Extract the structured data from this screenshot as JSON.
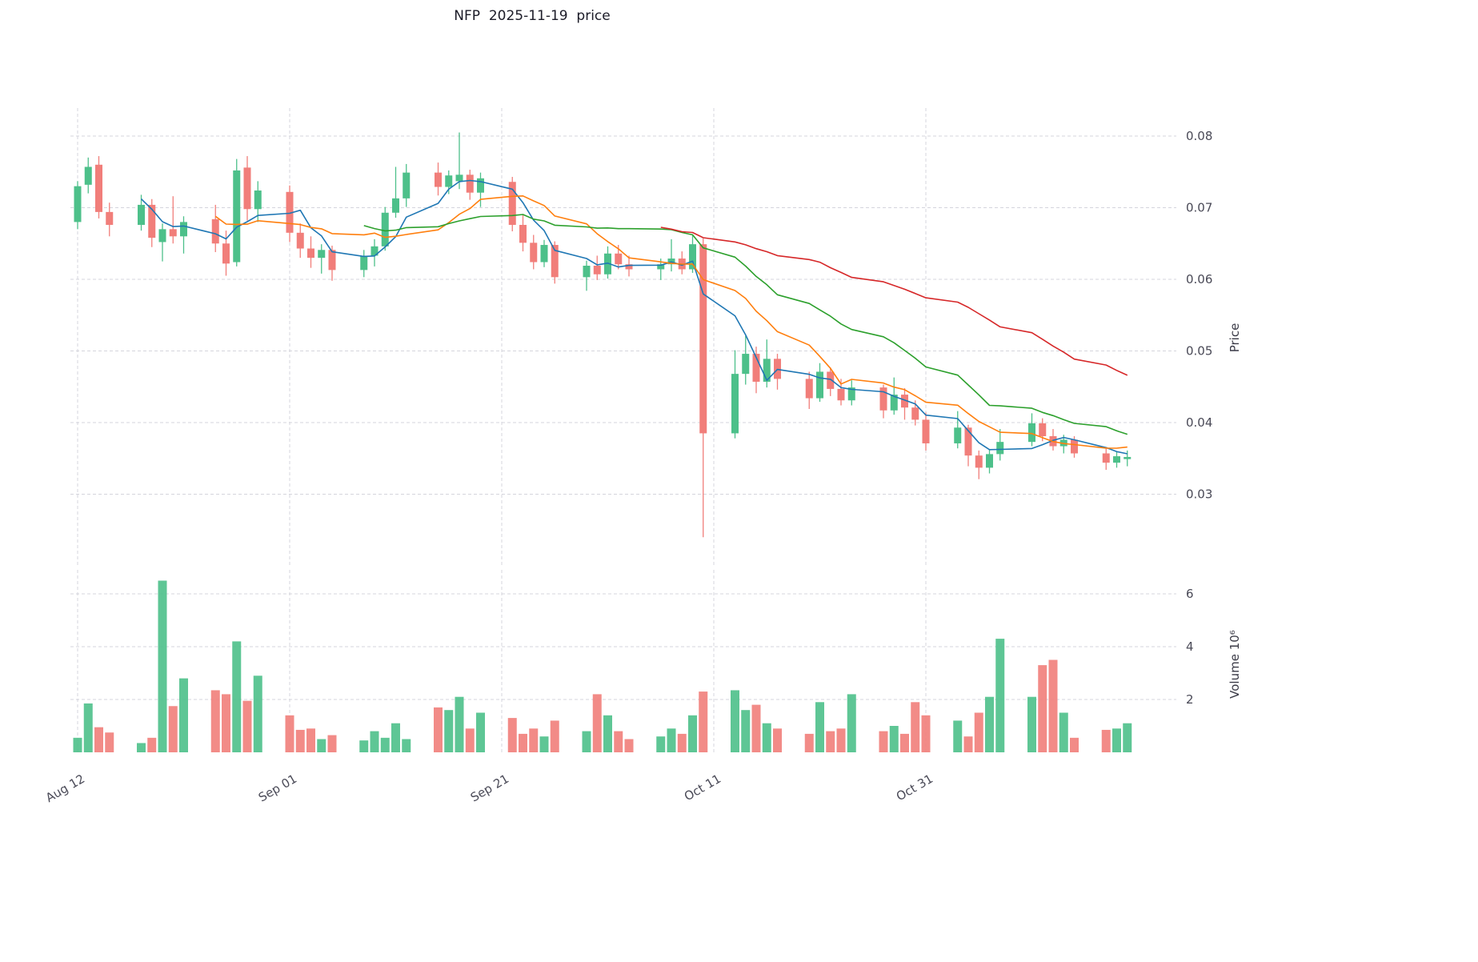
{
  "chart_data": {
    "type": "candlestick",
    "title": "NFP  2025-11-19  price",
    "price_axis": {
      "label": "Price",
      "side": "right",
      "ticks": [
        0.03,
        0.04,
        0.05,
        0.06,
        0.07,
        0.08
      ],
      "ylim": [
        0.021,
        0.084
      ]
    },
    "volume_axis": {
      "label": "Volume  10⁶",
      "side": "right",
      "ticks": [
        2,
        4,
        6
      ],
      "unit": 1000000,
      "ylim": [
        0,
        7
      ]
    },
    "x_axis": {
      "ticks": [
        {
          "date": "2025-08-12",
          "label": "Aug 12"
        },
        {
          "date": "2025-09-01",
          "label": "Sep 01"
        },
        {
          "date": "2025-09-21",
          "label": "Sep 21"
        },
        {
          "date": "2025-10-11",
          "label": "Oct 11"
        },
        {
          "date": "2025-10-31",
          "label": "Oct 31"
        }
      ]
    },
    "grid": true,
    "legend": "none",
    "moving_averages": [
      {
        "window": 5,
        "color": "#1f77b4"
      },
      {
        "window": 10,
        "color": "#ff7f0e"
      },
      {
        "window": 20,
        "color": "#2ca02c"
      },
      {
        "window": 40,
        "color": "#d62728"
      }
    ],
    "colors": {
      "up": "#4dc08a",
      "down": "#f17e7a",
      "grid": "#d4d4dc"
    },
    "ohlcv": [
      {
        "date": "2025-08-12",
        "o": 0.068,
        "h": 0.0737,
        "l": 0.067,
        "c": 0.073,
        "v": 0.55
      },
      {
        "date": "2025-08-13",
        "o": 0.0732,
        "h": 0.077,
        "l": 0.072,
        "c": 0.0757,
        "v": 1.85
      },
      {
        "date": "2025-08-14",
        "o": 0.076,
        "h": 0.0772,
        "l": 0.0685,
        "c": 0.0694,
        "v": 0.95
      },
      {
        "date": "2025-08-15",
        "o": 0.0694,
        "h": 0.0707,
        "l": 0.066,
        "c": 0.0676,
        "v": 0.75
      },
      {
        "date": "2025-08-18",
        "o": 0.0676,
        "h": 0.0718,
        "l": 0.0668,
        "c": 0.0704,
        "v": 0.35
      },
      {
        "date": "2025-08-19",
        "o": 0.0704,
        "h": 0.0712,
        "l": 0.0645,
        "c": 0.0658,
        "v": 0.55
      },
      {
        "date": "2025-08-20",
        "o": 0.0652,
        "h": 0.0678,
        "l": 0.0625,
        "c": 0.067,
        "v": 6.5
      },
      {
        "date": "2025-08-21",
        "o": 0.067,
        "h": 0.0716,
        "l": 0.065,
        "c": 0.066,
        "v": 1.75
      },
      {
        "date": "2025-08-22",
        "o": 0.066,
        "h": 0.0688,
        "l": 0.0636,
        "c": 0.068,
        "v": 2.8
      },
      {
        "date": "2025-08-25",
        "o": 0.0684,
        "h": 0.0704,
        "l": 0.0638,
        "c": 0.065,
        "v": 2.35
      },
      {
        "date": "2025-08-26",
        "o": 0.065,
        "h": 0.0668,
        "l": 0.0605,
        "c": 0.0622,
        "v": 2.2
      },
      {
        "date": "2025-08-27",
        "o": 0.0624,
        "h": 0.0768,
        "l": 0.0618,
        "c": 0.0752,
        "v": 4.2
      },
      {
        "date": "2025-08-28",
        "o": 0.0756,
        "h": 0.0772,
        "l": 0.0682,
        "c": 0.0698,
        "v": 1.95
      },
      {
        "date": "2025-08-29",
        "o": 0.0698,
        "h": 0.0737,
        "l": 0.068,
        "c": 0.0724,
        "v": 2.9
      },
      {
        "date": "2025-09-01",
        "o": 0.0722,
        "h": 0.0731,
        "l": 0.0652,
        "c": 0.0665,
        "v": 1.4
      },
      {
        "date": "2025-09-02",
        "o": 0.0665,
        "h": 0.0678,
        "l": 0.063,
        "c": 0.0643,
        "v": 0.85
      },
      {
        "date": "2025-09-03",
        "o": 0.0643,
        "h": 0.066,
        "l": 0.0616,
        "c": 0.063,
        "v": 0.9
      },
      {
        "date": "2025-09-04",
        "o": 0.063,
        "h": 0.0649,
        "l": 0.0608,
        "c": 0.0641,
        "v": 0.5
      },
      {
        "date": "2025-09-05",
        "o": 0.0641,
        "h": 0.0647,
        "l": 0.0598,
        "c": 0.0613,
        "v": 0.65
      },
      {
        "date": "2025-09-08",
        "o": 0.0613,
        "h": 0.0641,
        "l": 0.0603,
        "c": 0.0633,
        "v": 0.45
      },
      {
        "date": "2025-09-09",
        "o": 0.0633,
        "h": 0.0656,
        "l": 0.0618,
        "c": 0.0646,
        "v": 0.8
      },
      {
        "date": "2025-09-10",
        "o": 0.0646,
        "h": 0.0701,
        "l": 0.064,
        "c": 0.0693,
        "v": 0.55
      },
      {
        "date": "2025-09-11",
        "o": 0.0693,
        "h": 0.0757,
        "l": 0.0686,
        "c": 0.0713,
        "v": 1.1
      },
      {
        "date": "2025-09-12",
        "o": 0.0713,
        "h": 0.0761,
        "l": 0.0701,
        "c": 0.0749,
        "v": 0.5
      },
      {
        "date": "2025-09-15",
        "o": 0.0749,
        "h": 0.0763,
        "l": 0.0717,
        "c": 0.0729,
        "v": 1.7
      },
      {
        "date": "2025-09-16",
        "o": 0.0729,
        "h": 0.0752,
        "l": 0.0719,
        "c": 0.0745,
        "v": 1.6
      },
      {
        "date": "2025-09-17",
        "o": 0.0737,
        "h": 0.0805,
        "l": 0.0726,
        "c": 0.0746,
        "v": 2.1
      },
      {
        "date": "2025-09-18",
        "o": 0.0746,
        "h": 0.0753,
        "l": 0.0711,
        "c": 0.0721,
        "v": 0.9
      },
      {
        "date": "2025-09-19",
        "o": 0.0721,
        "h": 0.0749,
        "l": 0.0701,
        "c": 0.0741,
        "v": 1.5
      },
      {
        "date": "2025-09-22",
        "o": 0.0736,
        "h": 0.0743,
        "l": 0.0667,
        "c": 0.0676,
        "v": 1.3
      },
      {
        "date": "2025-09-23",
        "o": 0.0676,
        "h": 0.0691,
        "l": 0.0639,
        "c": 0.0651,
        "v": 0.7
      },
      {
        "date": "2025-09-24",
        "o": 0.0651,
        "h": 0.0662,
        "l": 0.0614,
        "c": 0.0624,
        "v": 0.9
      },
      {
        "date": "2025-09-25",
        "o": 0.0624,
        "h": 0.0655,
        "l": 0.0617,
        "c": 0.0648,
        "v": 0.6
      },
      {
        "date": "2025-09-26",
        "o": 0.0648,
        "h": 0.0653,
        "l": 0.0594,
        "c": 0.0603,
        "v": 1.2
      },
      {
        "date": "2025-09-29",
        "o": 0.0603,
        "h": 0.0626,
        "l": 0.0584,
        "c": 0.0619,
        "v": 0.8
      },
      {
        "date": "2025-09-30",
        "o": 0.0619,
        "h": 0.0633,
        "l": 0.0599,
        "c": 0.0607,
        "v": 2.2
      },
      {
        "date": "2025-10-01",
        "o": 0.0607,
        "h": 0.0646,
        "l": 0.0601,
        "c": 0.0636,
        "v": 1.4
      },
      {
        "date": "2025-10-02",
        "o": 0.0636,
        "h": 0.0648,
        "l": 0.0614,
        "c": 0.0621,
        "v": 0.8
      },
      {
        "date": "2025-10-03",
        "o": 0.0621,
        "h": 0.0633,
        "l": 0.0604,
        "c": 0.0614,
        "v": 0.5
      },
      {
        "date": "2025-10-06",
        "o": 0.0614,
        "h": 0.0629,
        "l": 0.0599,
        "c": 0.0621,
        "v": 0.6
      },
      {
        "date": "2025-10-07",
        "o": 0.0621,
        "h": 0.0656,
        "l": 0.0611,
        "c": 0.0629,
        "v": 0.9
      },
      {
        "date": "2025-10-08",
        "o": 0.0629,
        "h": 0.0639,
        "l": 0.0607,
        "c": 0.0614,
        "v": 0.7
      },
      {
        "date": "2025-10-09",
        "o": 0.0614,
        "h": 0.0661,
        "l": 0.0609,
        "c": 0.0649,
        "v": 1.4
      },
      {
        "date": "2025-10-10",
        "o": 0.0649,
        "h": 0.0657,
        "l": 0.024,
        "c": 0.0385,
        "v": 2.3
      },
      {
        "date": "2025-10-13",
        "o": 0.0385,
        "h": 0.0501,
        "l": 0.0378,
        "c": 0.0468,
        "v": 2.35
      },
      {
        "date": "2025-10-14",
        "o": 0.0468,
        "h": 0.0521,
        "l": 0.0453,
        "c": 0.0496,
        "v": 1.6
      },
      {
        "date": "2025-10-15",
        "o": 0.0496,
        "h": 0.0506,
        "l": 0.0441,
        "c": 0.0457,
        "v": 1.8
      },
      {
        "date": "2025-10-16",
        "o": 0.0457,
        "h": 0.0516,
        "l": 0.0449,
        "c": 0.0489,
        "v": 1.1
      },
      {
        "date": "2025-10-17",
        "o": 0.0489,
        "h": 0.0496,
        "l": 0.0446,
        "c": 0.0461,
        "v": 0.9
      },
      {
        "date": "2025-10-20",
        "o": 0.0461,
        "h": 0.0471,
        "l": 0.0419,
        "c": 0.0434,
        "v": 0.7
      },
      {
        "date": "2025-10-21",
        "o": 0.0434,
        "h": 0.0483,
        "l": 0.0429,
        "c": 0.0471,
        "v": 1.9
      },
      {
        "date": "2025-10-22",
        "o": 0.0471,
        "h": 0.0477,
        "l": 0.0437,
        "c": 0.0447,
        "v": 0.8
      },
      {
        "date": "2025-10-23",
        "o": 0.0447,
        "h": 0.0461,
        "l": 0.0424,
        "c": 0.0431,
        "v": 0.9
      },
      {
        "date": "2025-10-24",
        "o": 0.0431,
        "h": 0.0459,
        "l": 0.0424,
        "c": 0.0449,
        "v": 2.2
      },
      {
        "date": "2025-10-27",
        "o": 0.0449,
        "h": 0.0453,
        "l": 0.0406,
        "c": 0.0417,
        "v": 0.8
      },
      {
        "date": "2025-10-28",
        "o": 0.0417,
        "h": 0.0463,
        "l": 0.0411,
        "c": 0.0439,
        "v": 1.0
      },
      {
        "date": "2025-10-29",
        "o": 0.0439,
        "h": 0.0448,
        "l": 0.0404,
        "c": 0.0421,
        "v": 0.7
      },
      {
        "date": "2025-10-30",
        "o": 0.0421,
        "h": 0.0431,
        "l": 0.0396,
        "c": 0.0404,
        "v": 1.9
      },
      {
        "date": "2025-10-31",
        "o": 0.0404,
        "h": 0.0414,
        "l": 0.0361,
        "c": 0.0371,
        "v": 1.4
      },
      {
        "date": "2025-11-03",
        "o": 0.0371,
        "h": 0.0416,
        "l": 0.0364,
        "c": 0.0393,
        "v": 1.2
      },
      {
        "date": "2025-11-04",
        "o": 0.0393,
        "h": 0.0397,
        "l": 0.0339,
        "c": 0.0354,
        "v": 0.6
      },
      {
        "date": "2025-11-05",
        "o": 0.0354,
        "h": 0.0361,
        "l": 0.0321,
        "c": 0.0337,
        "v": 1.5
      },
      {
        "date": "2025-11-06",
        "o": 0.0337,
        "h": 0.0363,
        "l": 0.0329,
        "c": 0.0356,
        "v": 2.1
      },
      {
        "date": "2025-11-07",
        "o": 0.0356,
        "h": 0.0391,
        "l": 0.0347,
        "c": 0.0373,
        "v": 4.3
      },
      {
        "date": "2025-11-10",
        "o": 0.0373,
        "h": 0.0413,
        "l": 0.0367,
        "c": 0.0399,
        "v": 2.1
      },
      {
        "date": "2025-11-11",
        "o": 0.0399,
        "h": 0.0406,
        "l": 0.0374,
        "c": 0.0381,
        "v": 3.3
      },
      {
        "date": "2025-11-12",
        "o": 0.0381,
        "h": 0.0391,
        "l": 0.0361,
        "c": 0.0367,
        "v": 3.5
      },
      {
        "date": "2025-11-13",
        "o": 0.0367,
        "h": 0.0383,
        "l": 0.0357,
        "c": 0.0376,
        "v": 1.5
      },
      {
        "date": "2025-11-14",
        "o": 0.0376,
        "h": 0.0381,
        "l": 0.0351,
        "c": 0.0357,
        "v": 0.55
      },
      {
        "date": "2025-11-17",
        "o": 0.0357,
        "h": 0.0364,
        "l": 0.0334,
        "c": 0.0344,
        "v": 0.85
      },
      {
        "date": "2025-11-18",
        "o": 0.0344,
        "h": 0.0359,
        "l": 0.0337,
        "c": 0.0353,
        "v": 0.9
      },
      {
        "date": "2025-11-19",
        "o": 0.0349,
        "h": 0.0361,
        "l": 0.0339,
        "c": 0.0352,
        "v": 1.1
      }
    ]
  }
}
